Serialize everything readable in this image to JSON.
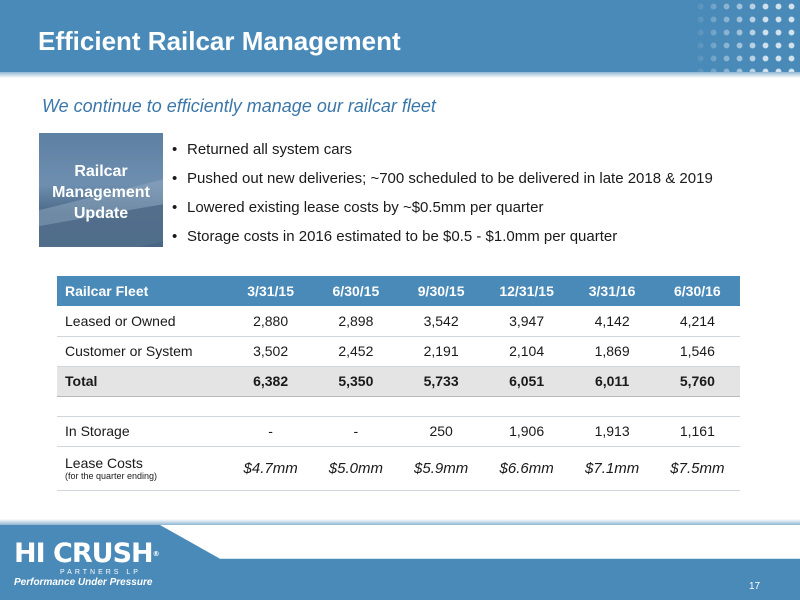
{
  "header": {
    "title": "Efficient Railcar Management"
  },
  "subtitle": "We continue to efficiently manage our railcar fleet",
  "image_caption": [
    "Railcar",
    "Management",
    "Update"
  ],
  "bullets": [
    "Returned all system cars",
    "Pushed out new deliveries; ~700 scheduled to be delivered in late 2018 & 2019",
    "Lowered existing lease costs by ~$0.5mm per quarter",
    "Storage costs in 2016 estimated to be $0.5 - $1.0mm per quarter"
  ],
  "table": {
    "headers": [
      "Railcar Fleet",
      "3/31/15",
      "6/30/15",
      "9/30/15",
      "12/31/15",
      "3/31/16",
      "6/30/16"
    ],
    "rows": [
      [
        "Leased or Owned",
        "2,880",
        "2,898",
        "3,542",
        "3,947",
        "4,142",
        "4,214"
      ],
      [
        "Customer or System",
        "3,502",
        "2,452",
        "2,191",
        "2,104",
        "1,869",
        "1,546"
      ]
    ],
    "total": [
      "Total",
      "6,382",
      "5,350",
      "5,733",
      "6,051",
      "6,011",
      "5,760"
    ],
    "storage": [
      "In Storage",
      "-",
      "-",
      "250",
      "1,906",
      "1,913",
      "1,161"
    ],
    "lease": {
      "label": "Lease Costs",
      "note": "(for the quarter ending)",
      "values": [
        "$4.7mm",
        "$5.0mm",
        "$5.9mm",
        "$6.6mm",
        "$7.1mm",
        "$7.5mm"
      ]
    }
  },
  "footer": {
    "logo_main": "HI CRUSH",
    "logo_tm": "®",
    "logo_sub": "PARTNERS LP",
    "logo_tagline": "Performance Under Pressure",
    "page_number": "17"
  },
  "colors": {
    "brand_blue": "#4a8ab8",
    "subtitle_blue": "#3c77a9",
    "total_row": "#e4e4e4"
  }
}
